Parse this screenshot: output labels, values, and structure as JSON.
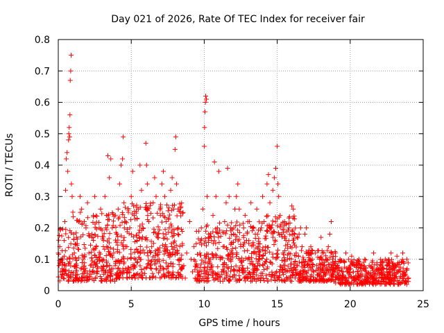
{
  "chart_data": {
    "type": "scatter",
    "title": "Day 021 of 2026, Rate Of TEC Index for receiver fair",
    "xlabel": "GPS time / hours",
    "ylabel": "ROTI / TECUs",
    "xlim": [
      0,
      25
    ],
    "ylim": [
      0,
      0.8
    ],
    "xticks": [
      0,
      5,
      10,
      15,
      20,
      25
    ],
    "yticks": [
      0,
      0.1,
      0.2,
      0.3,
      0.4,
      0.5,
      0.6,
      0.7,
      0.8
    ],
    "xtick_labels": [
      "0",
      "5",
      "10",
      "15",
      "20",
      "25"
    ],
    "ytick_labels": [
      "0",
      "0.1",
      "0.2",
      "0.3",
      "0.4",
      "0.5",
      "0.6",
      "0.7",
      "0.8"
    ],
    "grid": true,
    "marker": "plus",
    "color": "#ff0000",
    "series": [
      {
        "points": [
          [
            0.0,
            0.12
          ],
          [
            0.05,
            0.08
          ],
          [
            0.1,
            0.14
          ],
          [
            0.15,
            0.06
          ],
          [
            0.2,
            0.1
          ],
          [
            0.25,
            0.05
          ],
          [
            0.3,
            0.09
          ],
          [
            0.35,
            0.04
          ],
          [
            0.4,
            0.16
          ],
          [
            0.45,
            0.22
          ],
          [
            0.5,
            0.32
          ],
          [
            0.55,
            0.42
          ],
          [
            0.6,
            0.44
          ],
          [
            0.65,
            0.38
          ],
          [
            0.7,
            0.48
          ],
          [
            0.72,
            0.5
          ],
          [
            0.75,
            0.52
          ],
          [
            0.78,
            0.49
          ],
          [
            0.8,
            0.56
          ],
          [
            0.82,
            0.67
          ],
          [
            0.85,
            0.7
          ],
          [
            0.88,
            0.75
          ],
          [
            0.9,
            0.34
          ],
          [
            0.95,
            0.3
          ],
          [
            1.0,
            0.25
          ],
          [
            1.05,
            0.18
          ],
          [
            1.1,
            0.12
          ],
          [
            1.15,
            0.08
          ],
          [
            1.2,
            0.05
          ],
          [
            1.3,
            0.15
          ],
          [
            1.4,
            0.22
          ],
          [
            1.5,
            0.3
          ],
          [
            1.6,
            0.26
          ],
          [
            1.7,
            0.1
          ],
          [
            1.8,
            0.06
          ],
          [
            1.9,
            0.2
          ],
          [
            2.0,
            0.28
          ],
          [
            2.1,
            0.12
          ],
          [
            2.2,
            0.08
          ],
          [
            2.3,
            0.18
          ],
          [
            2.4,
            0.24
          ],
          [
            2.5,
            0.3
          ],
          [
            2.6,
            0.14
          ],
          [
            2.7,
            0.06
          ],
          [
            2.8,
            0.2
          ],
          [
            2.9,
            0.26
          ],
          [
            3.0,
            0.1
          ],
          [
            3.1,
            0.16
          ],
          [
            3.2,
            0.3
          ],
          [
            3.3,
            0.24
          ],
          [
            3.4,
            0.43
          ],
          [
            3.5,
            0.36
          ],
          [
            3.6,
            0.42
          ],
          [
            3.7,
            0.2
          ],
          [
            3.8,
            0.12
          ],
          [
            3.9,
            0.08
          ],
          [
            4.0,
            0.18
          ],
          [
            4.1,
            0.26
          ],
          [
            4.2,
            0.34
          ],
          [
            4.3,
            0.4
          ],
          [
            4.4,
            0.42
          ],
          [
            4.45,
            0.49
          ],
          [
            4.5,
            0.28
          ],
          [
            4.6,
            0.22
          ],
          [
            4.7,
            0.14
          ],
          [
            4.8,
            0.06
          ],
          [
            4.9,
            0.2
          ],
          [
            5.0,
            0.3
          ],
          [
            5.1,
            0.38
          ],
          [
            5.2,
            0.24
          ],
          [
            5.3,
            0.1
          ],
          [
            5.4,
            0.16
          ],
          [
            5.5,
            0.26
          ],
          [
            5.6,
            0.4
          ],
          [
            5.7,
            0.32
          ],
          [
            5.8,
            0.2
          ],
          [
            5.9,
            0.12
          ],
          [
            6.0,
            0.47
          ],
          [
            6.05,
            0.4
          ],
          [
            6.1,
            0.34
          ],
          [
            6.2,
            0.22
          ],
          [
            6.3,
            0.08
          ],
          [
            6.4,
            0.14
          ],
          [
            6.5,
            0.28
          ],
          [
            6.6,
            0.36
          ],
          [
            6.7,
            0.3
          ],
          [
            6.8,
            0.18
          ],
          [
            6.9,
            0.1
          ],
          [
            7.0,
            0.24
          ],
          [
            7.1,
            0.34
          ],
          [
            7.2,
            0.38
          ],
          [
            7.3,
            0.3
          ],
          [
            7.4,
            0.22
          ],
          [
            7.5,
            0.12
          ],
          [
            7.6,
            0.2
          ],
          [
            7.7,
            0.32
          ],
          [
            7.8,
            0.36
          ],
          [
            7.9,
            0.26
          ],
          [
            8.0,
            0.45
          ],
          [
            8.05,
            0.49
          ],
          [
            8.1,
            0.34
          ],
          [
            8.2,
            0.2
          ],
          [
            8.3,
            0.1
          ],
          [
            8.4,
            0.05
          ],
          [
            8.5,
            0.15
          ],
          [
            8.6,
            0.08
          ],
          [
            8.7,
            0.04
          ],
          [
            8.8,
            0.12
          ],
          [
            9.0,
            0.22
          ],
          [
            9.1,
            0.1
          ],
          [
            9.2,
            0.06
          ],
          [
            9.3,
            0.14
          ],
          [
            9.5,
            0.08
          ],
          [
            9.6,
            0.05
          ],
          [
            9.7,
            0.12
          ],
          [
            9.8,
            0.2
          ],
          [
            9.9,
            0.26
          ],
          [
            10.0,
            0.46
          ],
          [
            10.02,
            0.52
          ],
          [
            10.05,
            0.57
          ],
          [
            10.08,
            0.6
          ],
          [
            10.1,
            0.62
          ],
          [
            10.15,
            0.61
          ],
          [
            10.2,
            0.3
          ],
          [
            10.3,
            0.18
          ],
          [
            10.4,
            0.1
          ],
          [
            10.5,
            0.16
          ],
          [
            10.6,
            0.24
          ],
          [
            10.7,
            0.41
          ],
          [
            10.8,
            0.3
          ],
          [
            10.9,
            0.2
          ],
          [
            11.0,
            0.38
          ],
          [
            11.1,
            0.1
          ],
          [
            11.2,
            0.06
          ],
          [
            11.3,
            0.14
          ],
          [
            11.4,
            0.22
          ],
          [
            11.5,
            0.28
          ],
          [
            11.6,
            0.39
          ],
          [
            11.7,
            0.3
          ],
          [
            11.8,
            0.2
          ],
          [
            11.9,
            0.12
          ],
          [
            12.0,
            0.18
          ],
          [
            12.1,
            0.26
          ],
          [
            12.2,
            0.3
          ],
          [
            12.3,
            0.34
          ],
          [
            12.4,
            0.26
          ],
          [
            12.5,
            0.14
          ],
          [
            12.6,
            0.08
          ],
          [
            12.7,
            0.2
          ],
          [
            12.8,
            0.24
          ],
          [
            12.9,
            0.16
          ],
          [
            13.0,
            0.1
          ],
          [
            13.1,
            0.22
          ],
          [
            13.2,
            0.28
          ],
          [
            13.3,
            0.2
          ],
          [
            13.4,
            0.12
          ],
          [
            13.5,
            0.18
          ],
          [
            13.6,
            0.26
          ],
          [
            13.7,
            0.14
          ],
          [
            13.8,
            0.1
          ],
          [
            13.9,
            0.2
          ],
          [
            14.0,
            0.3
          ],
          [
            14.1,
            0.22
          ],
          [
            14.2,
            0.14
          ],
          [
            14.3,
            0.34
          ],
          [
            14.4,
            0.37
          ],
          [
            14.5,
            0.28
          ],
          [
            14.6,
            0.2
          ],
          [
            14.7,
            0.32
          ],
          [
            14.8,
            0.36
          ],
          [
            14.9,
            0.39
          ],
          [
            15.0,
            0.46
          ],
          [
            15.05,
            0.34
          ],
          [
            15.1,
            0.3
          ],
          [
            15.2,
            0.24
          ],
          [
            15.3,
            0.18
          ],
          [
            15.4,
            0.12
          ],
          [
            15.5,
            0.22
          ],
          [
            15.6,
            0.16
          ],
          [
            15.7,
            0.1
          ],
          [
            15.8,
            0.2
          ],
          [
            15.9,
            0.14
          ],
          [
            16.0,
            0.27
          ],
          [
            16.1,
            0.26
          ],
          [
            16.2,
            0.18
          ],
          [
            16.3,
            0.12
          ],
          [
            16.4,
            0.08
          ],
          [
            16.5,
            0.18
          ],
          [
            16.6,
            0.2
          ],
          [
            16.7,
            0.14
          ],
          [
            16.8,
            0.1
          ],
          [
            16.9,
            0.18
          ],
          [
            17.0,
            0.2
          ],
          [
            17.1,
            0.12
          ],
          [
            17.2,
            0.08
          ],
          [
            17.3,
            0.14
          ],
          [
            17.4,
            0.1
          ],
          [
            17.5,
            0.06
          ],
          [
            17.6,
            0.12
          ],
          [
            17.7,
            0.08
          ],
          [
            17.8,
            0.05
          ],
          [
            17.9,
            0.1
          ],
          [
            18.0,
            0.17
          ],
          [
            18.1,
            0.12
          ],
          [
            18.2,
            0.08
          ],
          [
            18.3,
            0.05
          ],
          [
            18.4,
            0.1
          ],
          [
            18.5,
            0.14
          ],
          [
            18.6,
            0.18
          ],
          [
            18.7,
            0.22
          ],
          [
            18.8,
            0.1
          ],
          [
            18.9,
            0.06
          ],
          [
            19.0,
            0.12
          ],
          [
            19.1,
            0.08
          ],
          [
            19.2,
            0.05
          ],
          [
            19.3,
            0.1
          ],
          [
            19.4,
            0.07
          ],
          [
            19.5,
            0.04
          ],
          [
            19.6,
            0.09
          ],
          [
            19.7,
            0.12
          ],
          [
            19.8,
            0.06
          ],
          [
            19.9,
            0.04
          ],
          [
            20.0,
            0.08
          ],
          [
            20.1,
            0.11
          ],
          [
            20.2,
            0.06
          ],
          [
            20.3,
            0.04
          ],
          [
            20.4,
            0.09
          ],
          [
            20.5,
            0.06
          ],
          [
            20.6,
            0.1
          ],
          [
            20.7,
            0.05
          ],
          [
            20.8,
            0.03
          ],
          [
            20.9,
            0.07
          ],
          [
            21.0,
            0.1
          ],
          [
            21.1,
            0.06
          ],
          [
            21.2,
            0.04
          ],
          [
            21.3,
            0.08
          ],
          [
            21.4,
            0.05
          ],
          [
            21.5,
            0.09
          ],
          [
            21.6,
            0.12
          ],
          [
            21.7,
            0.06
          ],
          [
            21.8,
            0.04
          ],
          [
            21.9,
            0.07
          ],
          [
            22.0,
            0.05
          ],
          [
            22.1,
            0.09
          ],
          [
            22.2,
            0.04
          ],
          [
            22.3,
            0.06
          ],
          [
            22.4,
            0.1
          ],
          [
            22.5,
            0.07
          ],
          [
            22.6,
            0.04
          ],
          [
            22.7,
            0.08
          ],
          [
            22.8,
            0.12
          ],
          [
            22.9,
            0.05
          ],
          [
            23.0,
            0.03
          ],
          [
            23.1,
            0.08
          ],
          [
            23.2,
            0.11
          ],
          [
            23.3,
            0.06
          ],
          [
            23.4,
            0.04
          ],
          [
            23.5,
            0.09
          ],
          [
            23.6,
            0.12
          ],
          [
            23.7,
            0.05
          ],
          [
            23.8,
            0.03
          ],
          [
            23.9,
            0.07
          ],
          [
            24.0,
            0.04
          ]
        ]
      }
    ],
    "clusters": [
      {
        "x0": 0.0,
        "x1": 1.0,
        "ymin": 0.03,
        "ymax": 0.2,
        "n": 60
      },
      {
        "x0": 1.0,
        "x1": 4.0,
        "ymin": 0.03,
        "ymax": 0.25,
        "n": 240
      },
      {
        "x0": 4.0,
        "x1": 8.6,
        "ymin": 0.04,
        "ymax": 0.28,
        "n": 360
      },
      {
        "x0": 9.3,
        "x1": 11.0,
        "ymin": 0.03,
        "ymax": 0.22,
        "n": 120
      },
      {
        "x0": 11.0,
        "x1": 14.0,
        "ymin": 0.03,
        "ymax": 0.22,
        "n": 220
      },
      {
        "x0": 14.0,
        "x1": 16.5,
        "ymin": 0.03,
        "ymax": 0.24,
        "n": 200
      },
      {
        "x0": 16.5,
        "x1": 19.0,
        "ymin": 0.03,
        "ymax": 0.13,
        "n": 200
      },
      {
        "x0": 19.0,
        "x1": 24.0,
        "ymin": 0.02,
        "ymax": 0.1,
        "n": 380
      }
    ]
  }
}
